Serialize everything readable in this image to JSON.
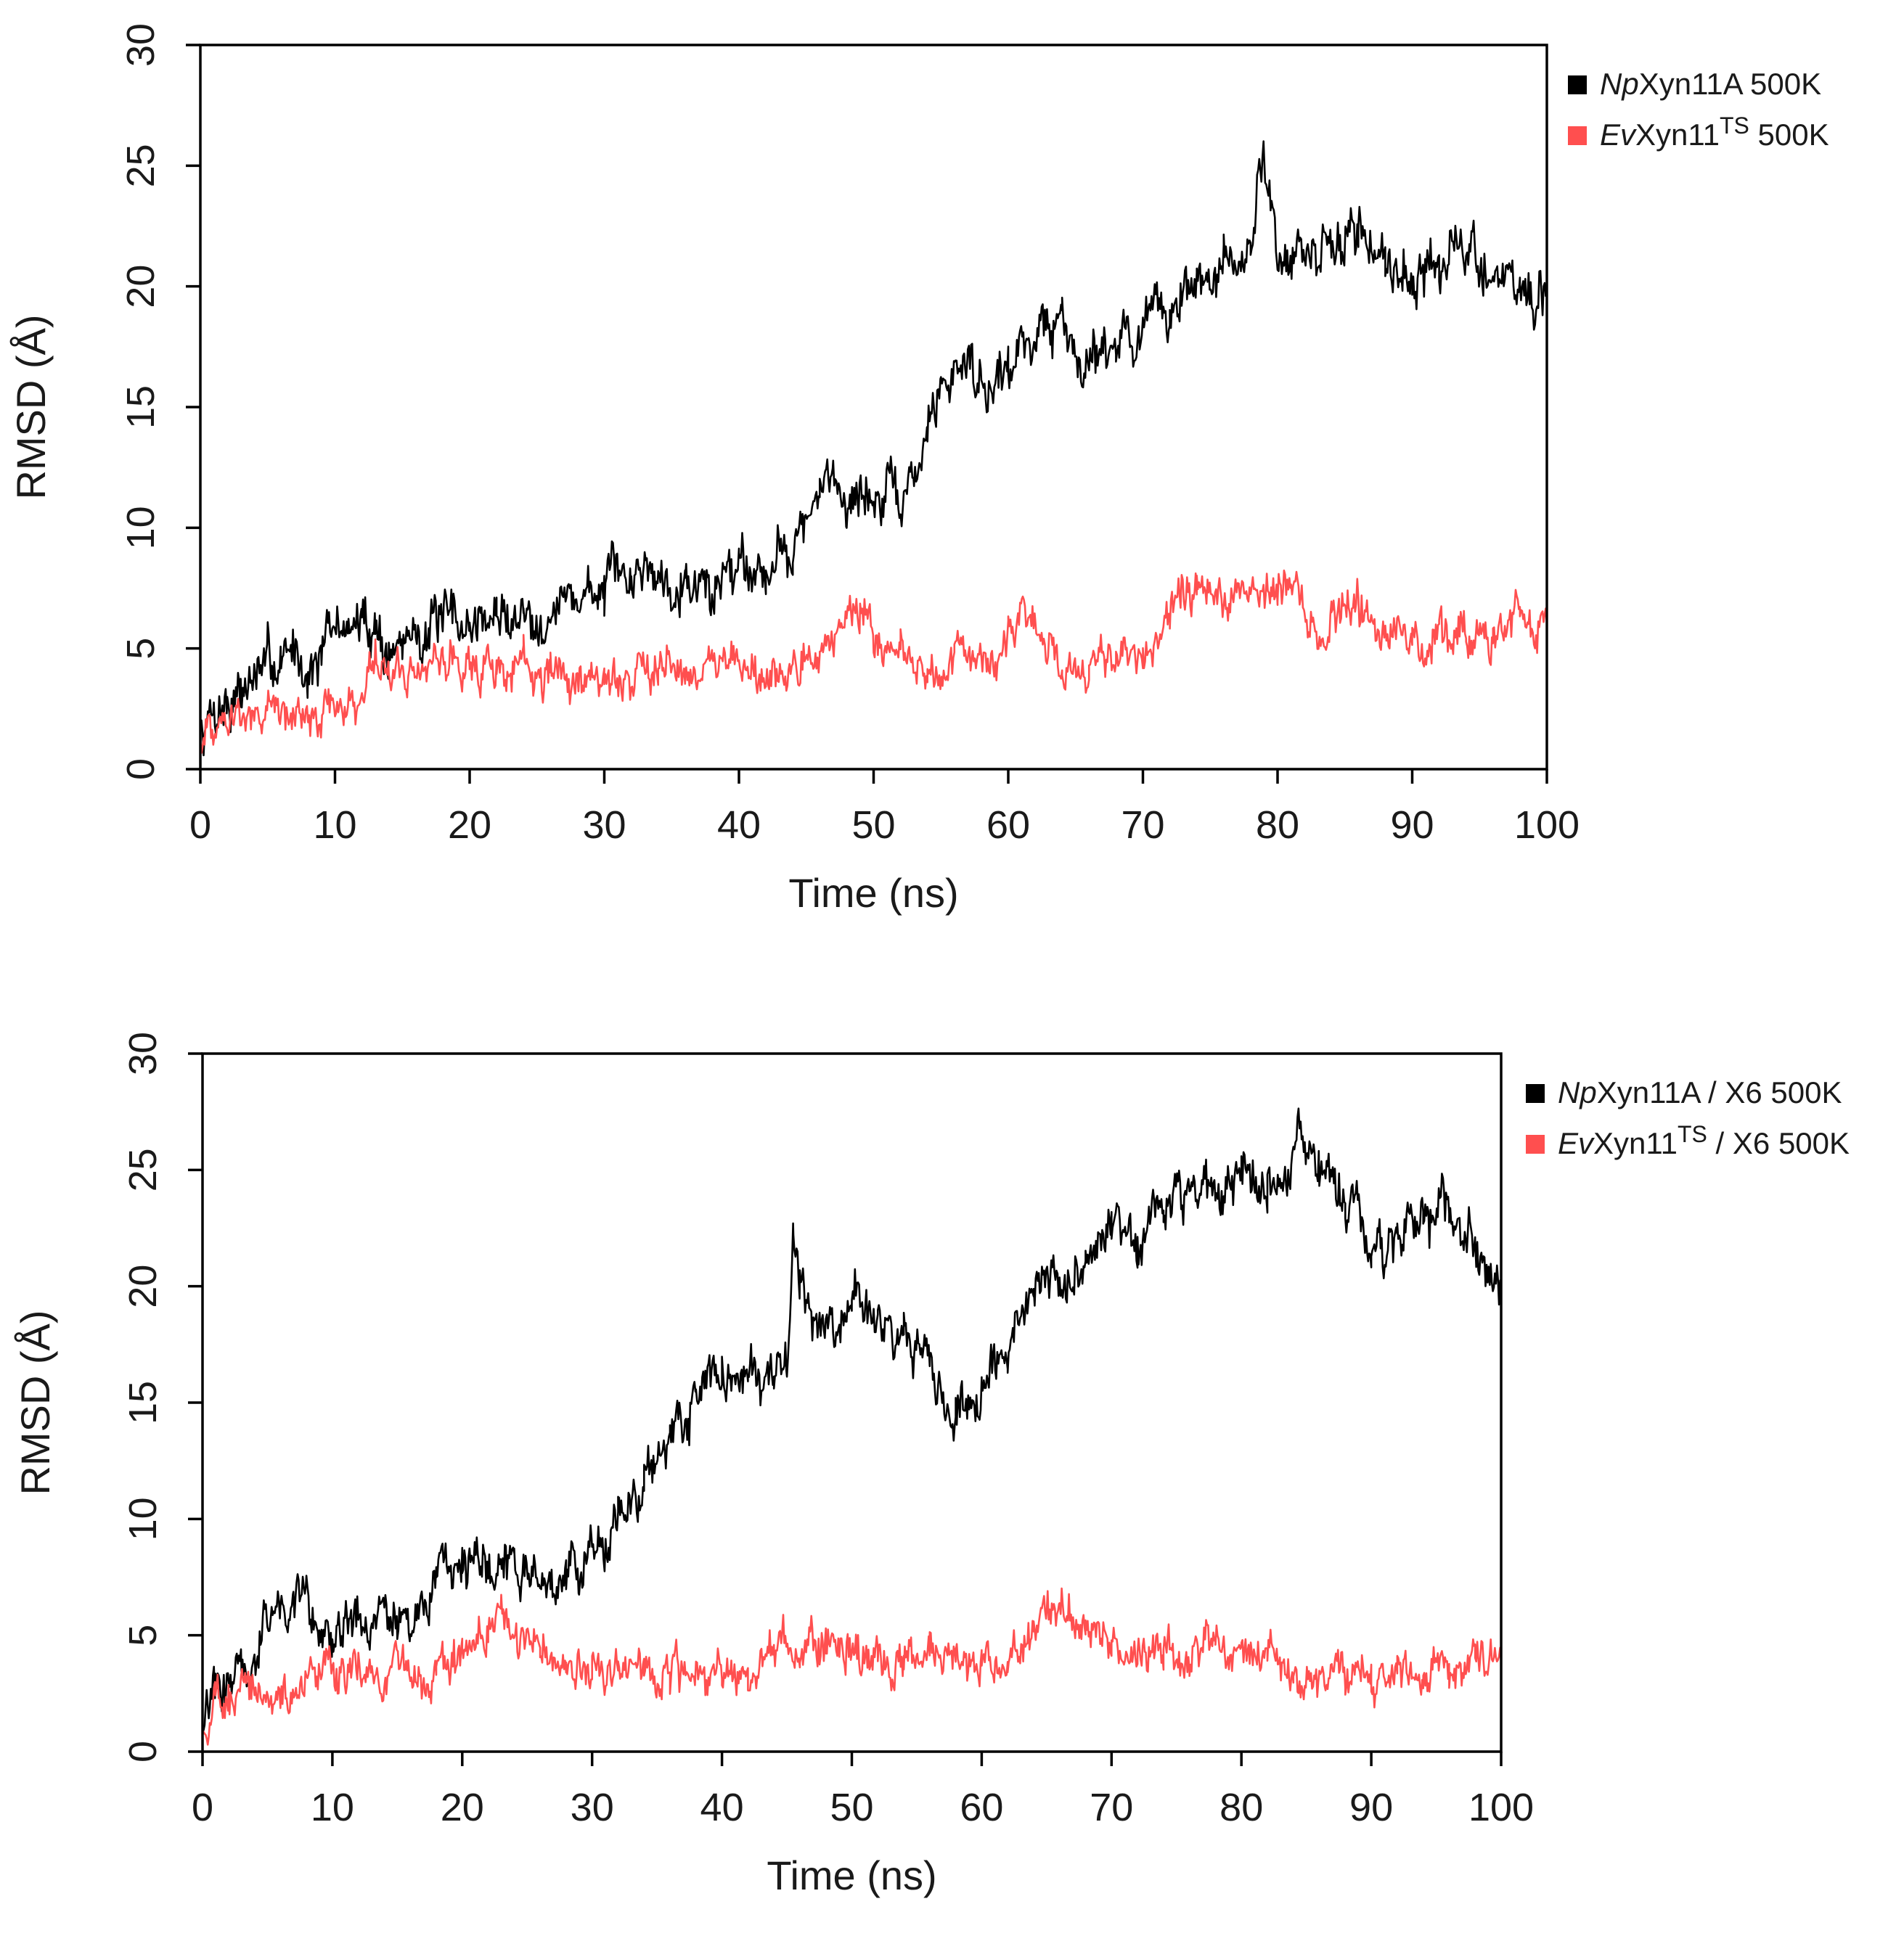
{
  "chart_data": [
    {
      "type": "line",
      "xlabel": "Time (ns)",
      "ylabel": "RMSD",
      "ylabel_unit": "(Å)",
      "xlim": [
        0,
        100
      ],
      "ylim": [
        0,
        30
      ],
      "xticks": [
        "0",
        "10",
        "20",
        "30",
        "40",
        "50",
        "60",
        "70",
        "80",
        "90",
        "100"
      ],
      "yticks": [
        "0",
        "5",
        "10",
        "15",
        "20",
        "25",
        "30"
      ],
      "legend_position": "outside-top-right",
      "series": [
        {
          "legend_italic": "Np",
          "legend_main": "Xyn11A",
          "legend_sup": "",
          "legend_suffix": " 500K",
          "color": "#000000",
          "x": [
            0,
            1,
            2,
            3,
            4,
            5,
            6,
            7,
            8,
            9,
            10,
            11,
            12,
            13,
            14,
            15,
            16,
            17,
            18,
            19,
            20,
            22,
            24,
            26,
            28,
            30,
            32,
            33,
            34,
            36,
            38,
            40,
            42,
            44,
            46,
            47,
            48,
            50,
            52,
            53,
            54,
            55,
            56,
            57,
            58,
            60,
            62,
            64,
            65,
            66,
            68,
            70,
            72,
            74,
            76,
            78,
            79,
            80,
            82,
            84,
            86,
            88,
            90,
            92,
            94,
            96,
            98,
            100
          ],
          "y": [
            1.5,
            2.5,
            2.8,
            3.2,
            3.8,
            4.2,
            4.6,
            5.0,
            4.2,
            4.8,
            5.8,
            6.0,
            5.9,
            6.1,
            4.6,
            5.2,
            5.8,
            6.0,
            5.9,
            6.1,
            6.0,
            6.3,
            6.4,
            6.6,
            7.2,
            7.5,
            7.9,
            8.6,
            8.1,
            8.0,
            7.3,
            8.9,
            8.3,
            9.5,
            10.9,
            12.6,
            11.2,
            11.3,
            11.0,
            12.0,
            14.0,
            15.8,
            16.5,
            17.2,
            16.0,
            16.7,
            18.2,
            18.5,
            17.0,
            17.5,
            17.8,
            18.2,
            19.0,
            20.2,
            20.5,
            21.2,
            26.0,
            21.5,
            21.0,
            21.5,
            22.5,
            21.2,
            20.5,
            20.8,
            21.5,
            20.5,
            20.0,
            18.9
          ]
        },
        {
          "legend_italic": "Ev",
          "legend_main": "Xyn11",
          "legend_sup": "TS",
          "legend_suffix": " 500K",
          "color": "#ff4f4f",
          "x": [
            0,
            1,
            2,
            4,
            6,
            8,
            10,
            12,
            13,
            14,
            16,
            18,
            20,
            22,
            24,
            26,
            28,
            30,
            32,
            34,
            36,
            38,
            40,
            42,
            44,
            46,
            48,
            49,
            50,
            52,
            54,
            56,
            58,
            60,
            61,
            62,
            64,
            66,
            68,
            70,
            72,
            74,
            76,
            78,
            80,
            81,
            82,
            84,
            86,
            88,
            90,
            92,
            94,
            96,
            98,
            100
          ],
          "y": [
            1.2,
            1.9,
            2.0,
            2.2,
            2.4,
            2.4,
            2.5,
            3.0,
            4.8,
            4.0,
            4.1,
            4.7,
            4.4,
            4.0,
            4.1,
            3.7,
            3.8,
            3.7,
            3.9,
            4.2,
            4.6,
            4.2,
            4.0,
            3.6,
            3.6,
            4.6,
            6.3,
            6.8,
            5.9,
            5.1,
            4.0,
            4.7,
            4.7,
            5.5,
            6.5,
            5.5,
            4.0,
            4.0,
            4.0,
            4.3,
            6.8,
            7.3,
            7.1,
            7.2,
            7.4,
            7.6,
            6.4,
            6.1,
            6.8,
            6.3,
            5.3,
            5.4,
            5.9,
            6.0,
            6.2,
            6.5
          ]
        }
      ]
    },
    {
      "type": "line",
      "xlabel": "Time (ns)",
      "ylabel": "RMSD",
      "ylabel_unit": "(Å)",
      "xlim": [
        0,
        100
      ],
      "ylim": [
        0,
        30
      ],
      "xticks": [
        "0",
        "10",
        "20",
        "30",
        "40",
        "50",
        "60",
        "70",
        "80",
        "90",
        "100"
      ],
      "yticks": [
        "0",
        "5",
        "10",
        "15",
        "20",
        "25",
        "30"
      ],
      "legend_position": "outside-top-right",
      "series": [
        {
          "legend_italic": "Np",
          "legend_main": "Xyn11A",
          "legend_sup": "",
          "legend_suffix": " / X6 500K",
          "color": "#000000",
          "x": [
            0,
            1,
            2,
            3,
            4,
            5,
            6,
            7,
            8,
            9,
            10,
            12,
            14,
            15,
            16,
            18,
            20,
            22,
            24,
            26,
            28,
            29,
            30,
            32,
            34,
            36,
            37,
            38,
            40,
            42,
            44,
            45,
            45.5,
            46,
            48,
            50,
            52,
            54,
            56,
            58,
            60,
            62,
            64,
            66,
            68,
            70,
            72,
            74,
            76,
            78,
            80,
            82,
            84,
            85,
            86,
            88,
            90,
            92,
            94,
            96,
            98,
            100
          ],
          "y": [
            1.2,
            2.2,
            3.5,
            3.6,
            3.5,
            6.0,
            6.2,
            6.5,
            6.8,
            5.2,
            5.0,
            5.3,
            5.5,
            5.8,
            5.2,
            6.8,
            7.5,
            8.0,
            8.2,
            7.8,
            7.3,
            7.5,
            9.0,
            10.0,
            11.5,
            13.2,
            13.8,
            16.0,
            15.8,
            16.5,
            16.2,
            17.0,
            22.5,
            20.0,
            18.5,
            19.5,
            18.5,
            18.0,
            16.5,
            14.0,
            15.5,
            17.8,
            19.0,
            20.5,
            21.0,
            22.5,
            22.0,
            23.5,
            24.0,
            24.5,
            25.0,
            24.0,
            25.5,
            26.5,
            25.0,
            24.5,
            21.0,
            22.5,
            23.0,
            23.2,
            22.0,
            19.8
          ]
        },
        {
          "legend_italic": "Ev",
          "legend_main": "Xyn11",
          "legend_sup": "TS",
          "legend_suffix": " / X6 500K",
          "color": "#ff4f4f",
          "x": [
            0,
            1,
            2,
            4,
            6,
            8,
            10,
            12,
            14,
            16,
            18,
            20,
            22,
            23,
            24,
            26,
            28,
            30,
            32,
            34,
            36,
            38,
            40,
            42,
            44,
            46,
            48,
            50,
            52,
            54,
            56,
            58,
            60,
            62,
            64,
            65,
            66,
            68,
            70,
            72,
            74,
            76,
            78,
            80,
            82,
            84,
            86,
            88,
            90,
            92,
            94,
            96,
            98,
            100
          ],
          "y": [
            1.0,
            1.8,
            2.5,
            2.8,
            2.3,
            2.9,
            3.5,
            3.7,
            3.2,
            3.4,
            3.6,
            4.2,
            5.0,
            6.1,
            4.8,
            4.3,
            3.6,
            3.5,
            3.4,
            3.6,
            3.3,
            3.4,
            3.4,
            3.5,
            4.5,
            4.2,
            4.8,
            4.6,
            4.5,
            3.9,
            4.1,
            4.2,
            4.0,
            4.3,
            4.8,
            5.8,
            6.3,
            5.8,
            4.4,
            4.2,
            4.1,
            4.2,
            4.3,
            4.4,
            4.3,
            3.4,
            3.4,
            3.3,
            3.3,
            3.4,
            3.5,
            3.8,
            4.0,
            4.2
          ]
        }
      ]
    }
  ]
}
